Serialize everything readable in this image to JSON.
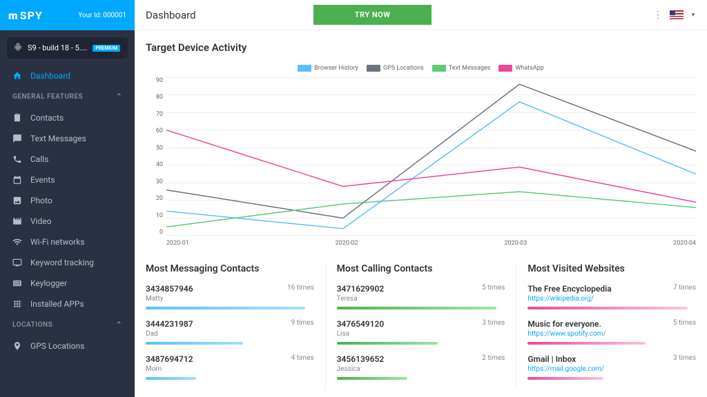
{
  "brand": {
    "name": "SPY",
    "prefix": "m"
  },
  "user_id_label": "Your Id: 000001",
  "device": {
    "name": "S9 - build 18 - 5....",
    "badge": "PREMIUM"
  },
  "nav": {
    "dashboard": "Dashboard",
    "sections": {
      "general": "GENERAL FEATURES",
      "locations": "LOCATIONS"
    },
    "items": {
      "contacts": "Contacts",
      "text_messages": "Text Messages",
      "calls": "Calls",
      "events": "Events",
      "photo": "Photo",
      "video": "Video",
      "wifi": "Wi-Fi networks",
      "keyword": "Keyword tracking",
      "keylogger": "Keylogger",
      "apps": "Installed APPs",
      "gps": "GPS Locations"
    }
  },
  "header": {
    "title": "Dashboard",
    "cta": "TRY NOW"
  },
  "chart": {
    "title": "Target Device Activity",
    "type": "line",
    "ylim": [
      0,
      90
    ],
    "ytick_step": 10,
    "yticks": [
      "90",
      "80",
      "70",
      "60",
      "50",
      "40",
      "30",
      "20",
      "10",
      "0"
    ],
    "xlabels": [
      "2020-01",
      "2020-02",
      "2020-03",
      "2020-04"
    ],
    "series": {
      "browser": {
        "label": "Browser History",
        "color": "#5bc0f8",
        "values": [
          14,
          4,
          76,
          35
        ]
      },
      "gps": {
        "label": "GPS Locations",
        "color": "#6b7280",
        "values": [
          26,
          10,
          86,
          48
        ]
      },
      "text": {
        "label": "Text Messages",
        "color": "#5fca7b",
        "values": [
          5,
          18,
          25,
          16
        ]
      },
      "whatsapp": {
        "label": "WhatsApp",
        "color": "#ec4899",
        "values": [
          60,
          28,
          39,
          19
        ]
      }
    },
    "grid_color": "#eeeeee",
    "background_color": "#ffffff",
    "label_fontsize": 9
  },
  "panels": {
    "messaging": {
      "title": "Most Messaging Contacts",
      "bar_color": "linear-gradient(90deg,#5bc0f8,#a8ddff)",
      "items": [
        {
          "main": "3434857946",
          "sub": "Matty",
          "count": "16 times",
          "width": "95%"
        },
        {
          "main": "3444231987",
          "sub": "Dad",
          "count": "9 times",
          "width": "58%"
        },
        {
          "main": "3487694712",
          "sub": "Mom",
          "count": "4 times",
          "width": "30%"
        }
      ]
    },
    "calling": {
      "title": "Most Calling Contacts",
      "bar_color": "linear-gradient(90deg,#4caf50,#9de4a1)",
      "items": [
        {
          "main": "3471629902",
          "sub": "Teresa",
          "count": "5 times",
          "width": "95%"
        },
        {
          "main": "3476549120",
          "sub": "Lisa",
          "count": "3 times",
          "width": "60%"
        },
        {
          "main": "3456139652",
          "sub": "Jessica",
          "count": "2 times",
          "width": "42%"
        }
      ]
    },
    "websites": {
      "title": "Most Visited Websites",
      "bar_color": "linear-gradient(90deg,#ec4899,#f9c5dd)",
      "items": [
        {
          "main": "The Free Encyclopedia",
          "link": "https://wikipedia.org/",
          "count": "7 times",
          "width": "95%"
        },
        {
          "main": "Music for everyone.",
          "link": "https://www.spotify.com/",
          "count": "5 times",
          "width": "70%"
        },
        {
          "main": "Gmail | Inbox",
          "link": "https://mail.google.com/",
          "count": "3 times",
          "width": "45%"
        }
      ]
    }
  }
}
